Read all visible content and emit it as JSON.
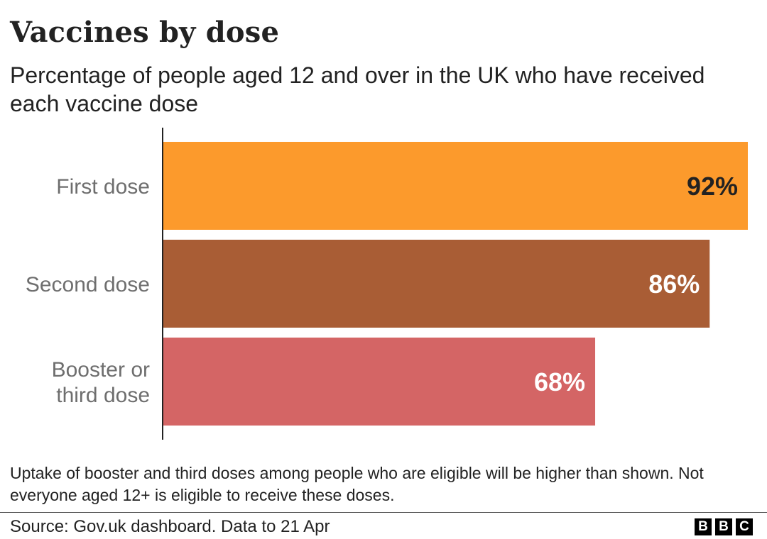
{
  "title": "Vaccines by dose",
  "subtitle": "Percentage of people aged 12 and over in the UK who have received each vaccine dose",
  "footnote": "Uptake of booster and third doses among people who are eligible will be higher than shown. Not everyone aged 12+ is eligible to receive these doses.",
  "source": "Source: Gov.uk dashboard. Data to 21 Apr",
  "logo": [
    "B",
    "B",
    "C"
  ],
  "chart_data": {
    "type": "bar",
    "orientation": "horizontal",
    "categories": [
      [
        "First dose"
      ],
      [
        "Second dose"
      ],
      [
        "Booster or",
        "third dose"
      ]
    ],
    "values": [
      92,
      86,
      68
    ],
    "value_labels": [
      "92%",
      "86%",
      "68%"
    ],
    "colors": [
      "#fc9a2c",
      "#a95d35",
      "#d46565"
    ],
    "value_label_colors": [
      "#222222",
      "#ffffff",
      "#ffffff"
    ],
    "xlim": [
      0,
      92
    ],
    "grid": false,
    "legend": "none"
  }
}
